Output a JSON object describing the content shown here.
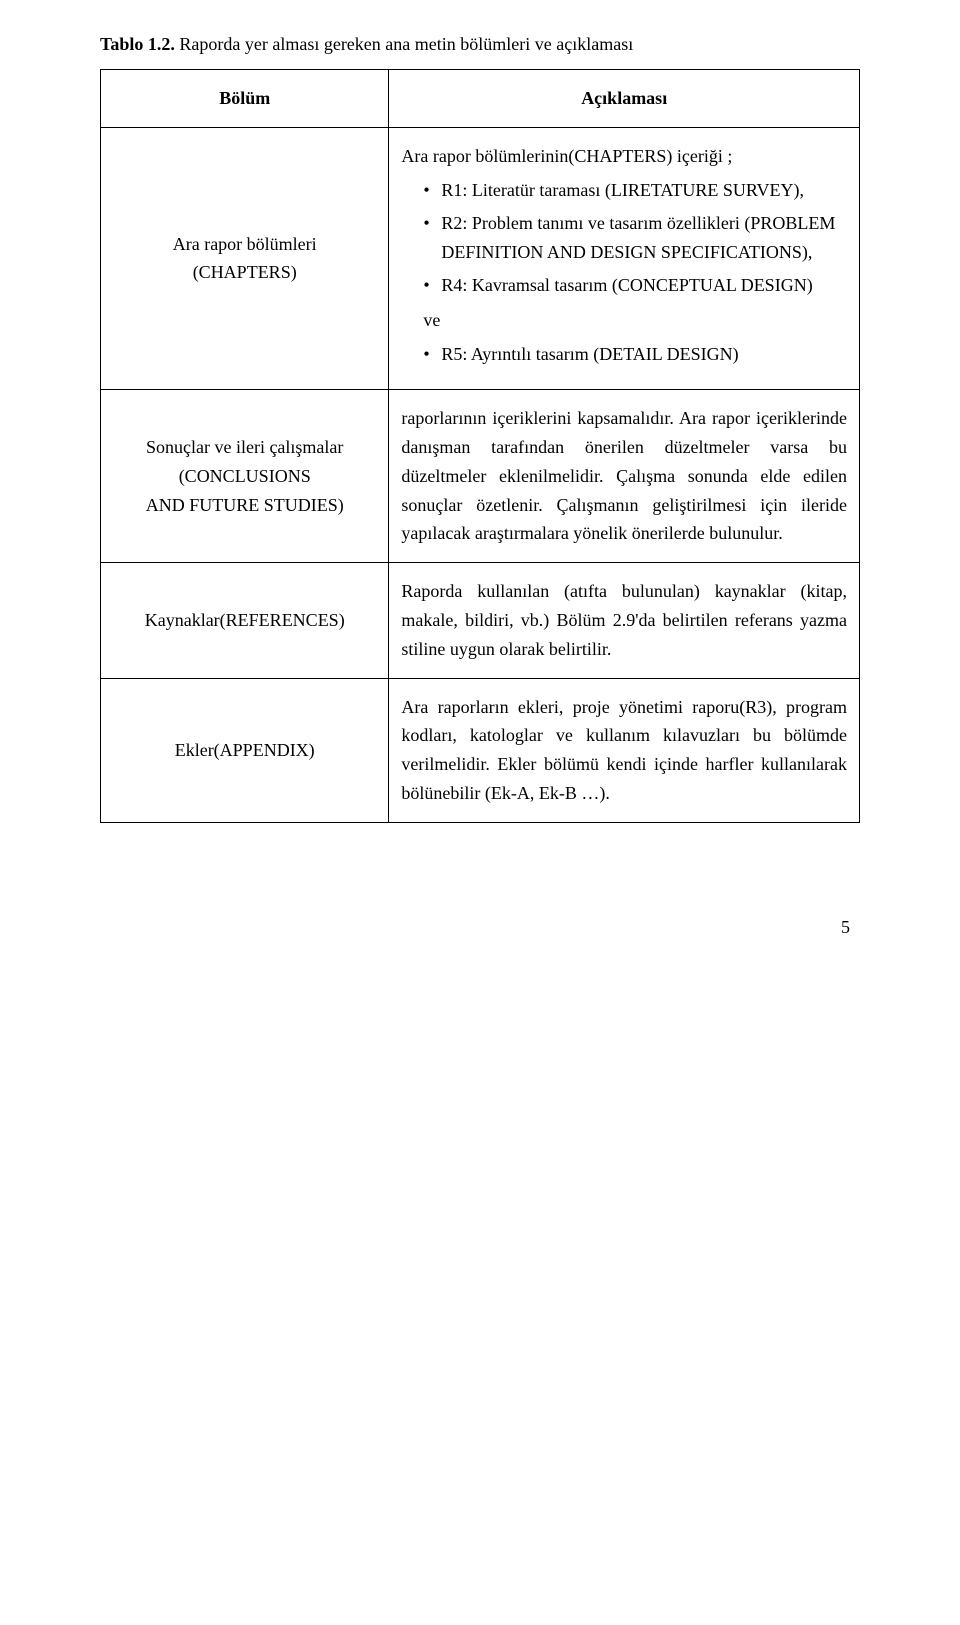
{
  "caption_bold": "Tablo 1.2.",
  "caption_rest": " Raporda yer alması gereken ana metin bölümleri ve açıklaması",
  "header": {
    "col1": "Bölüm",
    "col2": "Açıklaması"
  },
  "row1": {
    "left_line1": "Ara rapor bölümleri",
    "left_line2": "(CHAPTERS)",
    "intro": "Ara rapor bölümlerinin(CHAPTERS) içeriği ;",
    "b1": "R1: Literatür taraması (LIRETATURE SURVEY),",
    "b2": "R2: Problem tanımı ve tasarım özellikleri (PROBLEM DEFINITION AND DESIGN SPECIFICATIONS),",
    "b3": "R4: Kavramsal tasarım (CONCEPTUAL DESIGN)",
    "ve": "ve",
    "b4": "R5: Ayrıntılı tasarım (DETAIL DESIGN)"
  },
  "row2": {
    "left_line1": "Sonuçlar ve ileri çalışmalar",
    "left_line2": "(CONCLUSIONS",
    "left_line3": "AND FUTURE STUDIES)",
    "desc": "raporlarının içeriklerini kapsamalıdır. Ara rapor içeriklerinde danışman tarafından önerilen düzeltmeler varsa bu düzeltmeler eklenilmelidir. Çalışma sonunda elde edilen sonuçlar özetlenir. Çalışmanın geliştirilmesi için ileride yapılacak araştırmalara yönelik önerilerde bulunulur."
  },
  "row3": {
    "left": "Kaynaklar(REFERENCES)",
    "desc": "Raporda kullanılan (atıfta bulunulan) kaynaklar (kitap, makale, bildiri, vb.) Bölüm 2.9'da belirtilen referans yazma stiline uygun olarak belirtilir."
  },
  "row4": {
    "left": "Ekler(APPENDIX)",
    "desc": "Ara raporların ekleri, proje yönetimi raporu(R3), program kodları, katologlar ve kullanım kılavuzları bu bölümde verilmelidir. Ekler bölümü kendi içinde harfler kullanılarak bölünebilir (Ek-A, Ek-B …)."
  },
  "page_num": "5"
}
